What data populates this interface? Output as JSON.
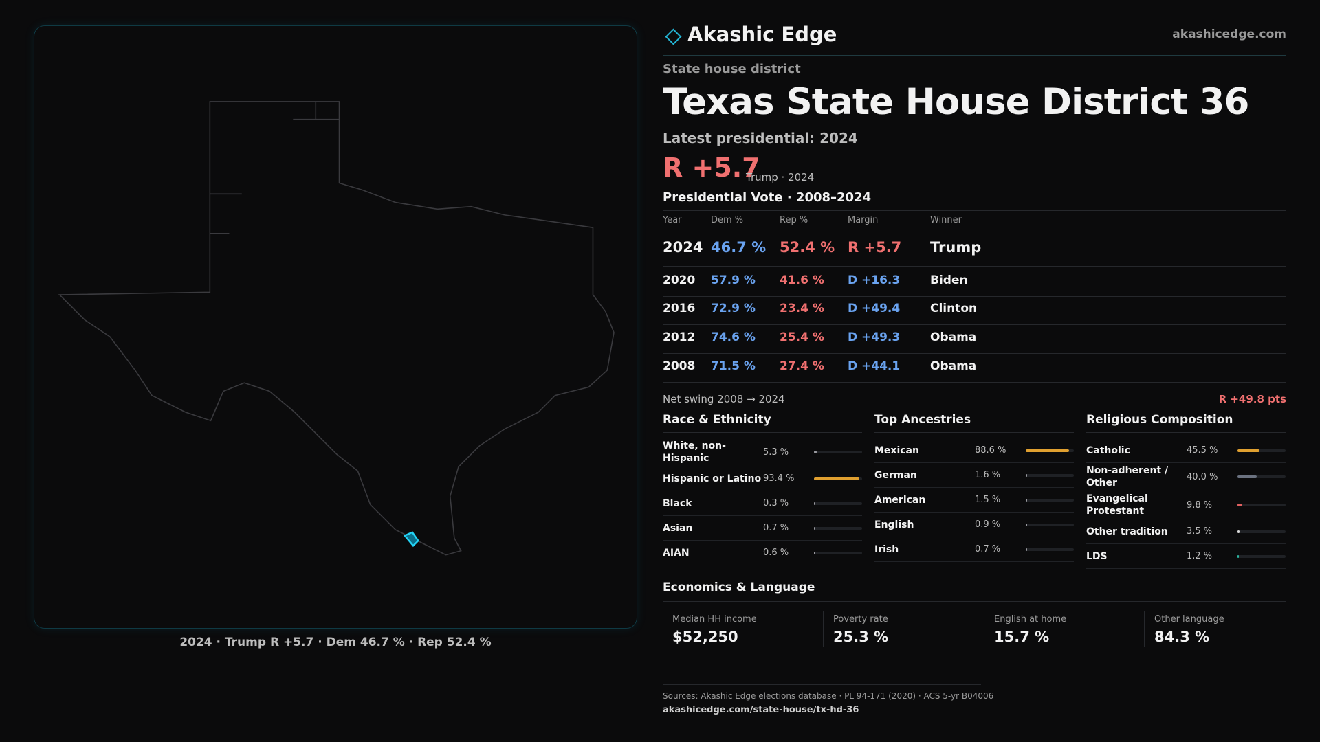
{
  "header": {
    "brand": "Akashic Edge",
    "site": "akashicedge.com"
  },
  "map": {
    "caption": "2024 · Trump R +5.7 · Dem 46.7 % · Rep 52.4 %"
  },
  "district": {
    "kicker": "State house district",
    "title_state": "Texas",
    "title_district": "State House District 36",
    "latest": "Latest presidential: 2024",
    "margin": "R +5.7",
    "margin_note": "Trump · 2024"
  },
  "presidential": {
    "title": "Presidential Vote · 2008–2024",
    "columns": [
      "Year",
      "Dem %",
      "Rep %",
      "Margin",
      "Winner"
    ],
    "rows": [
      [
        "2024",
        "46.7 %",
        "52.4 %",
        "R +5.7",
        "Trump"
      ],
      [
        "2020",
        "57.9 %",
        "41.6 %",
        "D +16.3",
        "Biden"
      ],
      [
        "2016",
        "72.9 %",
        "23.4 %",
        "D +49.4",
        "Clinton"
      ],
      [
        "2012",
        "74.6 %",
        "25.4 %",
        "D +49.3",
        "Obama"
      ],
      [
        "2008",
        "71.5 %",
        "27.4 %",
        "D +44.1",
        "Obama"
      ]
    ],
    "swing_label": "Net swing 2008 → 2024",
    "swing_value": "R +49.8 pts"
  },
  "demographics": [
    {
      "title": "Race & Ethnicity",
      "rows": [
        {
          "label": "White, non-Hispanic",
          "value": 5.3,
          "value_label": "5.3 %",
          "color": "#9a9aa0"
        },
        {
          "label": "Hispanic or Latino",
          "value": 93.4,
          "value_label": "93.4 %",
          "color": "#e0a030"
        },
        {
          "label": "Black",
          "value": 0.3,
          "value_label": "0.3 %",
          "color": "#9a9aa0"
        },
        {
          "label": "Asian",
          "value": 0.7,
          "value_label": "0.7 %",
          "color": "#9a9aa0"
        },
        {
          "label": "AIAN",
          "value": 0.6,
          "value_label": "0.6 %",
          "color": "#9a9aa0"
        }
      ]
    },
    {
      "title": "Top Ancestries",
      "rows": [
        {
          "label": "Mexican",
          "value": 88.6,
          "value_label": "88.6 %",
          "color": "#e0a030"
        },
        {
          "label": "German",
          "value": 1.6,
          "value_label": "1.6 %",
          "color": "#9a9aa0"
        },
        {
          "label": "American",
          "value": 1.5,
          "value_label": "1.5 %",
          "color": "#9a9aa0"
        },
        {
          "label": "English",
          "value": 0.9,
          "value_label": "0.9 %",
          "color": "#9a9aa0"
        },
        {
          "label": "Irish",
          "value": 0.7,
          "value_label": "0.7 %",
          "color": "#9a9aa0"
        }
      ]
    },
    {
      "title": "Religious Composition",
      "rows": [
        {
          "label": "Catholic",
          "value": 45.5,
          "value_label": "45.5 %",
          "color": "#e0a030"
        },
        {
          "label": "Non-adherent / Other",
          "value": 40.0,
          "value_label": "40.0 %",
          "color": "#6b7280"
        },
        {
          "label": "Evangelical Protestant",
          "value": 9.8,
          "value_label": "9.8 %",
          "color": "#e06060"
        },
        {
          "label": "Other tradition",
          "value": 3.5,
          "value_label": "3.5 %",
          "color": "#d8d8d8"
        },
        {
          "label": "LDS",
          "value": 1.2,
          "value_label": "1.2 %",
          "color": "#2bb5a0"
        }
      ]
    }
  ],
  "economics": {
    "title": "Economics & Language",
    "stats": [
      {
        "label": "Median HH income",
        "value": "$52,250"
      },
      {
        "label": "Poverty rate",
        "value": "25.3 %"
      },
      {
        "label": "English at home",
        "value": "15.7 %"
      },
      {
        "label": "Other language",
        "value": "84.3 %"
      }
    ]
  },
  "footer": {
    "sources": "Sources: Akashic Edge elections database · PL 94-171 (2020) · ACS 5-yr B04006",
    "url": "akashicedge.com/state-house/tx-hd-36"
  }
}
